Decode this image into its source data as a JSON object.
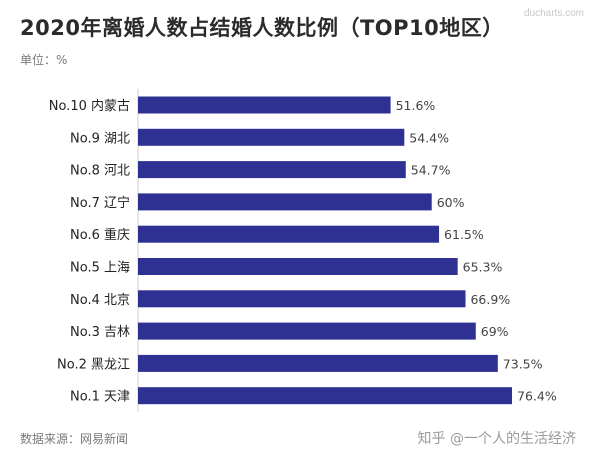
{
  "title": "2020年离婚人数占结婚人数比例（TOP10地区）",
  "unit_label": "单位：%",
  "source_label": "数据来源：网易新闻",
  "watermark_top": "ducharts.com",
  "credit": "知乎 @一个人的生活经济",
  "colors": {
    "bar": "#2e3192",
    "label": "#222222",
    "value": "#444444"
  },
  "chart_data": {
    "type": "bar",
    "orientation": "horizontal",
    "categories": [
      "No.10 内蒙古",
      "No.9 湖北",
      "No.8 河北",
      "No.7 辽宁",
      "No.6 重庆",
      "No.5 上海",
      "No.4 北京",
      "No.3 吉林",
      "No.2 黑龙江",
      "No.1 天津"
    ],
    "values": [
      51.6,
      54.4,
      54.7,
      60,
      61.5,
      65.3,
      66.9,
      69,
      73.5,
      76.4
    ],
    "value_labels": [
      "51.6%",
      "54.4%",
      "54.7%",
      "60%",
      "61.5%",
      "65.3%",
      "66.9%",
      "69%",
      "73.5%",
      "76.4%"
    ],
    "title": "2020年离婚人数占结婚人数比例（TOP10地区）",
    "xlabel": "",
    "ylabel": "",
    "xlim": [
      0,
      76.4
    ],
    "grid": false,
    "legend": "none"
  }
}
